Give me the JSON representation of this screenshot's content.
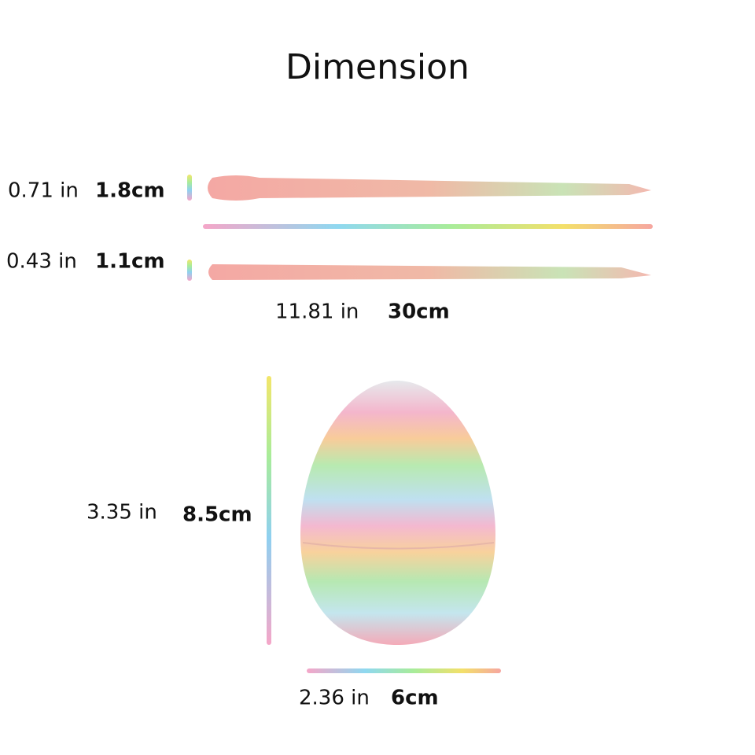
{
  "title": "Dimension",
  "snake_large": {
    "inch": "0.71 in",
    "cm": "1.8cm"
  },
  "snake_small": {
    "inch": "0.43 in",
    "cm": "1.1cm"
  },
  "snake_length": {
    "inch": "11.81 in",
    "cm": "30cm"
  },
  "egg_height": {
    "inch": "3.35 in",
    "cm": "8.5cm"
  },
  "egg_width": {
    "inch": "2.36 in",
    "cm": "6cm"
  }
}
